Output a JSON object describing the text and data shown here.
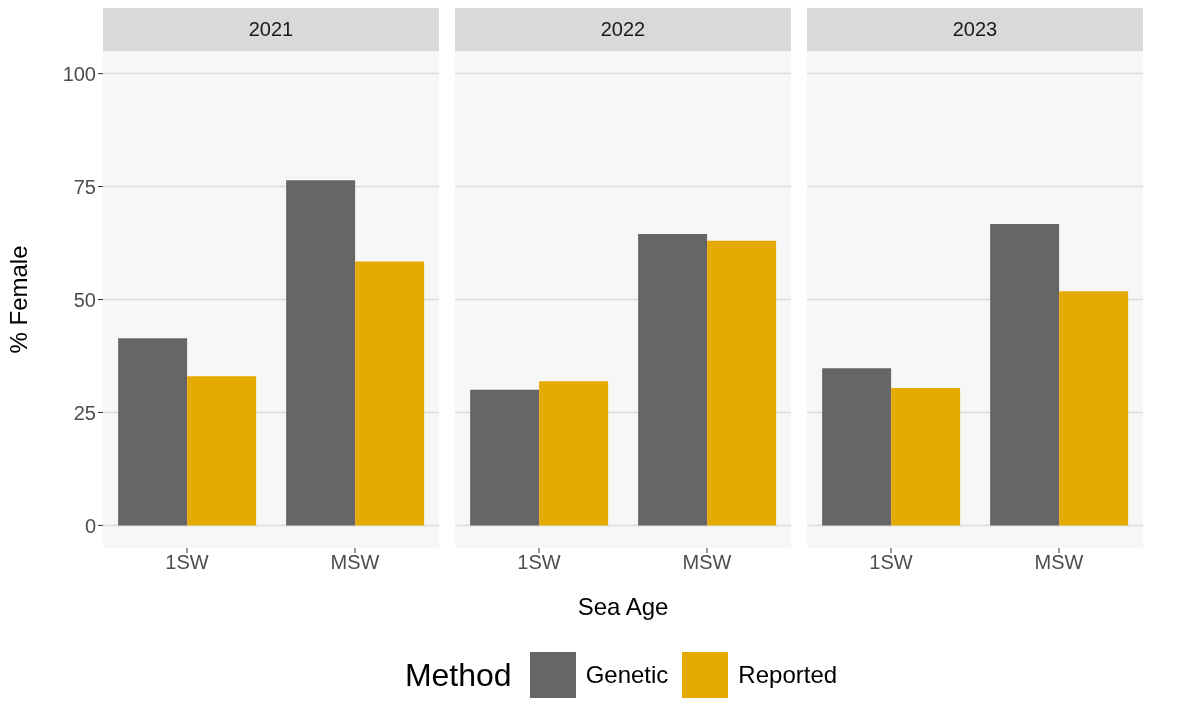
{
  "chart_data": [
    {
      "type": "bar",
      "title": "2021",
      "ylabel": "% Female",
      "categories": [
        "1SW",
        "MSW"
      ],
      "series": [
        {
          "color": "#666666",
          "values": [
            41.4,
            76.4
          ]
        },
        {
          "color": "#e6ab02",
          "values": [
            33.0,
            58.4
          ]
        }
      ],
      "ylim": [
        -5,
        105
      ],
      "yticks": [
        0,
        25,
        50,
        75,
        100
      ],
      "grid": "y"
    },
    {
      "type": "bar",
      "title": "2022",
      "xlabel": "Sea Age",
      "legend_title": "Method",
      "legend": "bottom",
      "categories": [
        "1SW",
        "MSW"
      ],
      "series": [
        {
          "name": "Genetic",
          "color": "#666666",
          "values": [
            30.0,
            64.5
          ]
        },
        {
          "name": "Reported",
          "color": "#e6ab02",
          "values": [
            31.9,
            63.0
          ]
        }
      ],
      "ylim": [
        -5,
        105
      ],
      "yticks": [
        0,
        25,
        50,
        75,
        100
      ],
      "grid": "y",
      "tick_labels": "x"
    },
    {
      "type": "bar",
      "title": "2023",
      "categories": [
        "1SW",
        "MSW"
      ],
      "series": [
        {
          "color": "#666666",
          "values": [
            34.8,
            66.7
          ]
        },
        {
          "color": "#e6ab02",
          "values": [
            30.4,
            51.8
          ]
        }
      ],
      "ylim": [
        -5,
        105
      ],
      "yticks": [
        0,
        25,
        50,
        75,
        100
      ],
      "grid": "y",
      "tick_labels": "x"
    }
  ]
}
